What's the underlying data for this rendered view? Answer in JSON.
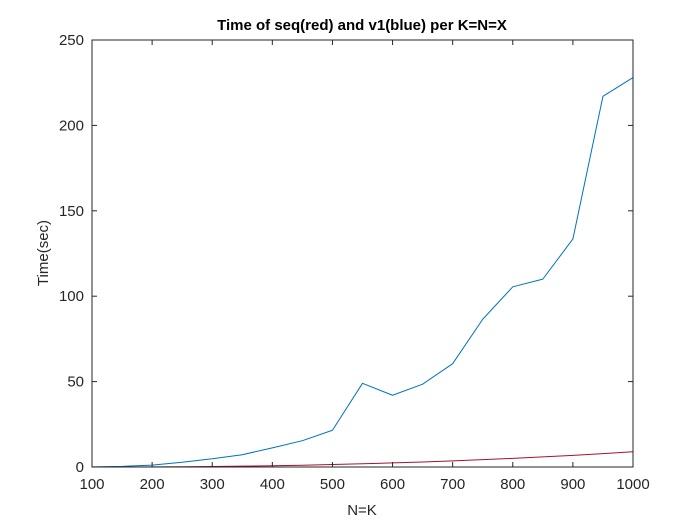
{
  "chart_data": {
    "type": "line",
    "title": "Time of seq(red) and v1(blue) per K=N=X",
    "xlabel": "N=K",
    "ylabel": "Time(sec)",
    "xlim": [
      100,
      1000
    ],
    "ylim": [
      0,
      250
    ],
    "xticks": [
      100,
      200,
      300,
      400,
      500,
      600,
      700,
      800,
      900,
      1000
    ],
    "yticks": [
      0,
      50,
      100,
      150,
      200,
      250
    ],
    "xtick_labels": [
      "100",
      "200",
      "300",
      "400",
      "500",
      "600",
      "700",
      "800",
      "900",
      "1000"
    ],
    "ytick_labels": [
      "0",
      "50",
      "100",
      "150",
      "200",
      "250"
    ],
    "grid": false,
    "box": true,
    "x": [
      100,
      150,
      200,
      250,
      300,
      350,
      400,
      450,
      500,
      550,
      600,
      650,
      700,
      750,
      800,
      850,
      900,
      950,
      1000
    ],
    "series": [
      {
        "color": "#0072BD",
        "values": [
          0.1,
          0.4,
          1.1,
          2.8,
          4.8,
          7.2,
          11.2,
          15.4,
          21.5,
          49.0,
          42.0,
          48.5,
          60.5,
          86.5,
          105.5,
          110.0,
          133.5,
          217.0,
          228.0
        ]
      },
      {
        "color": "#A2142F",
        "values": [
          0.0,
          0.03,
          0.07,
          0.15,
          0.3,
          0.5,
          0.75,
          1.05,
          1.45,
          1.9,
          2.4,
          2.95,
          3.6,
          4.3,
          5.05,
          5.9,
          6.8,
          7.8,
          8.9
        ]
      }
    ]
  }
}
